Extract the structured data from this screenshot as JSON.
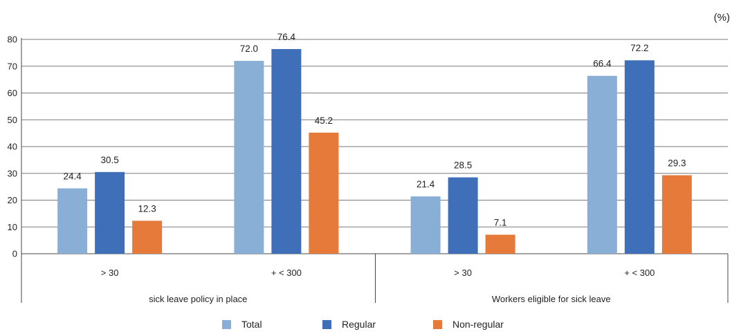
{
  "unit_label": "(%)",
  "chart_data": {
    "type": "bar",
    "title": "",
    "xlabel": "",
    "ylabel": "",
    "ylim": [
      0,
      80
    ],
    "yticks": [
      0,
      10,
      20,
      30,
      40,
      50,
      60,
      70,
      80
    ],
    "grid": true,
    "legend_placement": "bottom",
    "groups": [
      {
        "label": "sick leave policy in place",
        "categories": [
          "> 30",
          "+ < 300"
        ]
      },
      {
        "label": "Workers eligible for sick leave",
        "categories": [
          "> 30",
          "+ < 300"
        ]
      }
    ],
    "series": [
      {
        "name": "Total",
        "color": "#8aafd7",
        "values": [
          24.4,
          72.0,
          21.4,
          66.4
        ]
      },
      {
        "name": "Regular",
        "color": "#3f6fb9",
        "values": [
          30.5,
          76.4,
          28.5,
          72.2
        ]
      },
      {
        "name": "Non-regular",
        "color": "#e57a3b",
        "values": [
          12.3,
          45.2,
          7.1,
          29.3
        ]
      }
    ]
  }
}
